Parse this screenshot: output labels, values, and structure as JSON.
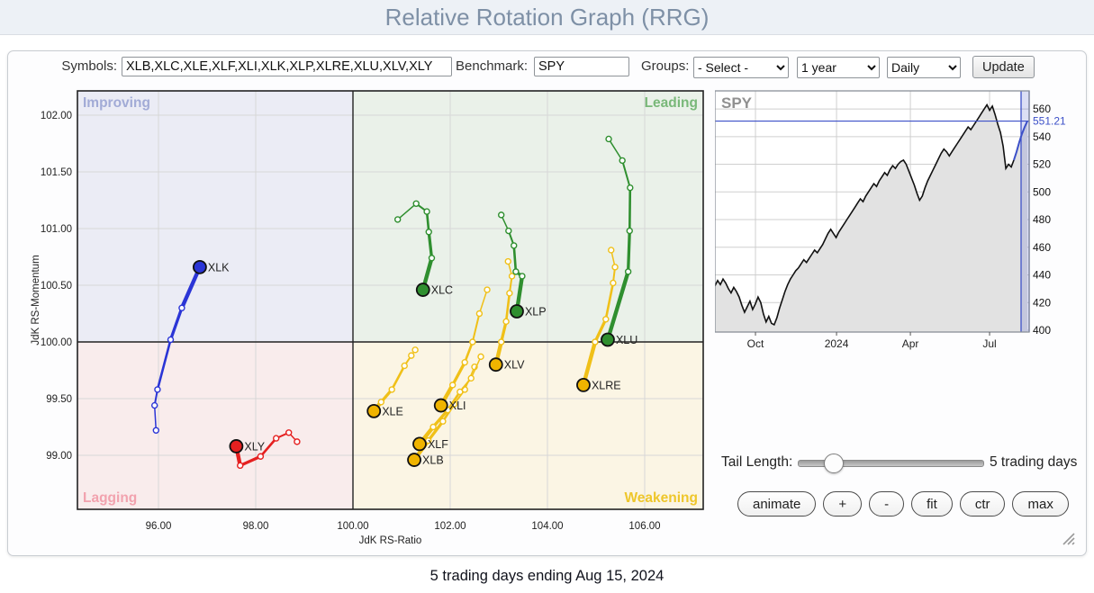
{
  "header": {
    "title": "Relative Rotation Graph (RRG)"
  },
  "toolbar": {
    "symbols_label": "Symbols:",
    "symbols_value": "XLB,XLC,XLE,XLF,XLI,XLK,XLP,XLRE,XLU,XLV,XLY",
    "benchmark_label": "Benchmark:",
    "benchmark_value": "SPY",
    "groups_label": "Groups:",
    "groups_value": "- Select -",
    "period_value": "1 year",
    "frequency_value": "Daily",
    "update_label": "Update"
  },
  "controls": {
    "tail_length_label": "Tail Length:",
    "tail_length_value": "5 trading days",
    "buttons": [
      "animate",
      "+",
      "-",
      "fit",
      "ctr",
      "max"
    ]
  },
  "footer": {
    "caption": "5 trading days ending Aug 15, 2024"
  },
  "chart_data": [
    {
      "type": "scatter",
      "title": "Relative Rotation Graph",
      "xlabel": "JdK RS-Ratio",
      "ylabel": "JdK RS-Momentum",
      "xlim": [
        94.33,
        107.2
      ],
      "ylim": [
        98.52,
        102.22
      ],
      "x_ticks": [
        "96.00",
        "98.00",
        "100.00",
        "102.00",
        "104.00",
        "106.00"
      ],
      "y_ticks": [
        "99.00",
        "99.50",
        "100.00",
        "100.50",
        "101.00",
        "101.50",
        "102.00"
      ],
      "center": [
        100,
        100
      ],
      "quadrant_labels": [
        {
          "text": "Improving",
          "color": "#a2abd6",
          "bg": "#ebecf5",
          "position": "top-left"
        },
        {
          "text": "Leading",
          "color": "#79b879",
          "bg": "#eaf1e9",
          "position": "top-right"
        },
        {
          "text": "Lagging",
          "color": "#f2a2ae",
          "bg": "#f9ecec",
          "position": "bottom-left"
        },
        {
          "text": "Weakening",
          "color": "#eec62a",
          "bg": "#fbf5e4",
          "position": "bottom-right"
        }
      ],
      "series": [
        {
          "name": "XLB",
          "color": "#f0c018",
          "head_fill": "#f0b400",
          "points": [
            [
              102.5,
              99.78
            ],
            [
              102.3,
              99.58
            ],
            [
              102.08,
              99.45
            ],
            [
              101.85,
              99.3
            ],
            [
              101.55,
              99.13
            ],
            [
              101.26,
              98.96
            ]
          ]
        },
        {
          "name": "XLE",
          "color": "#f0c018",
          "head_fill": "#f0b400",
          "points": [
            [
              101.28,
              99.93
            ],
            [
              101.2,
              99.88
            ],
            [
              101.06,
              99.79
            ],
            [
              100.8,
              99.58
            ],
            [
              100.58,
              99.47
            ],
            [
              100.43,
              99.39
            ]
          ]
        },
        {
          "name": "XLF",
          "color": "#f0c018",
          "head_fill": "#f0b400",
          "points": [
            [
              102.63,
              99.87
            ],
            [
              102.43,
              99.68
            ],
            [
              102.2,
              99.56
            ],
            [
              101.95,
              99.4
            ],
            [
              101.65,
              99.25
            ],
            [
              101.37,
              99.1
            ]
          ]
        },
        {
          "name": "XLI",
          "color": "#f0c018",
          "head_fill": "#f0b400",
          "points": [
            [
              102.76,
              100.46
            ],
            [
              102.6,
              100.25
            ],
            [
              102.46,
              100.0
            ],
            [
              102.3,
              99.82
            ],
            [
              102.05,
              99.62
            ],
            [
              101.81,
              99.44
            ]
          ]
        },
        {
          "name": "XLV",
          "color": "#f0c018",
          "head_fill": "#f0b400",
          "points": [
            [
              103.19,
              100.71
            ],
            [
              103.27,
              100.58
            ],
            [
              103.22,
              100.43
            ],
            [
              103.15,
              100.18
            ],
            [
              103.05,
              100.0
            ],
            [
              102.94,
              99.8
            ]
          ]
        },
        {
          "name": "XLRE",
          "color": "#f0c018",
          "head_fill": "#f0b400",
          "points": [
            [
              105.31,
              100.81
            ],
            [
              105.39,
              100.66
            ],
            [
              105.35,
              100.52
            ],
            [
              105.2,
              100.2
            ],
            [
              104.98,
              100.0
            ],
            [
              104.74,
              99.62
            ]
          ]
        },
        {
          "name": "XLC",
          "color": "#2f8f2f",
          "head_fill": "#2f8f2f",
          "points": [
            [
              100.92,
              101.08
            ],
            [
              101.3,
              101.22
            ],
            [
              101.52,
              101.15
            ],
            [
              101.56,
              100.97
            ],
            [
              101.62,
              100.74
            ],
            [
              101.44,
              100.46
            ]
          ]
        },
        {
          "name": "XLP",
          "color": "#2f8f2f",
          "head_fill": "#2f8f2f",
          "points": [
            [
              103.05,
              101.12
            ],
            [
              103.2,
              100.98
            ],
            [
              103.31,
              100.85
            ],
            [
              103.35,
              100.62
            ],
            [
              103.48,
              100.58
            ],
            [
              103.37,
              100.27
            ]
          ]
        },
        {
          "name": "XLU",
          "color": "#2f8f2f",
          "head_fill": "#2f8f2f",
          "points": [
            [
              105.26,
              101.79
            ],
            [
              105.54,
              101.6
            ],
            [
              105.7,
              101.36
            ],
            [
              105.69,
              100.98
            ],
            [
              105.66,
              100.62
            ],
            [
              105.24,
              100.02
            ]
          ]
        },
        {
          "name": "XLY",
          "color": "#e52020",
          "head_fill": "#e52020",
          "points": [
            [
              98.85,
              99.12
            ],
            [
              98.68,
              99.2
            ],
            [
              98.42,
              99.15
            ],
            [
              98.1,
              98.99
            ],
            [
              97.68,
              98.91
            ],
            [
              97.6,
              99.08
            ]
          ]
        },
        {
          "name": "XLK",
          "color": "#2b35d6",
          "head_fill": "#2b35d6",
          "points": [
            [
              95.95,
              99.22
            ],
            [
              95.92,
              99.44
            ],
            [
              95.98,
              99.58
            ],
            [
              96.25,
              100.02
            ],
            [
              96.48,
              100.3
            ],
            [
              96.85,
              100.66
            ]
          ]
        }
      ]
    },
    {
      "type": "area",
      "title": "SPY",
      "x_tick_labels": [
        "Oct",
        "2024",
        "Apr",
        "Jul"
      ],
      "y_ticks": [
        400,
        420,
        440,
        460,
        480,
        500,
        520,
        540,
        560
      ],
      "ylim": [
        395,
        571
      ],
      "last_price": 551.21,
      "last_price_label": "551.21",
      "highlight_last_n": 5,
      "line_color": "#111111",
      "area_color": "#e2e2e2",
      "highlight_color": "#3c50c8",
      "values": [
        432,
        436,
        433,
        437,
        434,
        430,
        427,
        431,
        428,
        424,
        418,
        413,
        417,
        421,
        415,
        419,
        424,
        420,
        412,
        406,
        410,
        405,
        404,
        409,
        416,
        422,
        428,
        433,
        437,
        440,
        443,
        445,
        448,
        451,
        449,
        452,
        455,
        458,
        456,
        459,
        462,
        466,
        470,
        473,
        470,
        467,
        471,
        474,
        477,
        480,
        483,
        486,
        489,
        492,
        495,
        493,
        497,
        500,
        503,
        506,
        504,
        508,
        511,
        514,
        512,
        516,
        519,
        517,
        520,
        522,
        523,
        520,
        515,
        510,
        505,
        499,
        494,
        497,
        503,
        508,
        512,
        516,
        520,
        524,
        528,
        531,
        529,
        526,
        529,
        532,
        535,
        538,
        541,
        544,
        547,
        545,
        548,
        551,
        554,
        557,
        560,
        563,
        559,
        562,
        556,
        549,
        543,
        533,
        517,
        520,
        518,
        523,
        529,
        536,
        542,
        547,
        551.21
      ]
    }
  ]
}
